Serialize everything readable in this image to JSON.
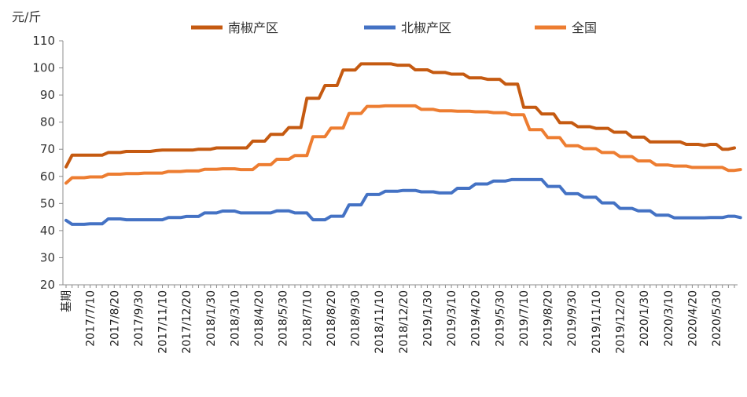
{
  "chart_data": {
    "type": "line",
    "unit_label": "元/斤",
    "ylim": [
      20,
      110
    ],
    "yticks": [
      20,
      30,
      40,
      50,
      60,
      70,
      80,
      90,
      100,
      110
    ],
    "x_labels": [
      "基期",
      "2017/7/10",
      "2017/8/20",
      "2017/9/30",
      "2017/11/10",
      "2017/12/20",
      "2018/1/30",
      "2018/3/10",
      "2018/4/20",
      "2018/5/30",
      "2018/7/10",
      "2018/8/20",
      "2018/9/30",
      "2018/11/10",
      "2018/12/20",
      "2019/1/30",
      "2019/3/10",
      "2019/4/20",
      "2019/5/30",
      "2019/7/10",
      "2019/8/20",
      "2019/9/30",
      "2019/11/10",
      "2019/12/20",
      "2020/1/30",
      "2020/3/10",
      "2020/4/20",
      "2020/5/30"
    ],
    "grid": false,
    "legend_position": "top",
    "series": [
      {
        "name": "南椒产区",
        "color": "#C55A11",
        "values": [
          63.5,
          67.8,
          67.8,
          67.8,
          67.8,
          67.8,
          67.8,
          68.8,
          68.8,
          68.8,
          69.2,
          69.2,
          69.2,
          69.2,
          69.2,
          69.5,
          69.7,
          69.7,
          69.7,
          69.7,
          69.7,
          69.7,
          70.0,
          70.0,
          70.0,
          70.5,
          70.5,
          70.5,
          70.5,
          70.5,
          70.5,
          73.0,
          73.0,
          73.0,
          75.5,
          75.5,
          75.5,
          78.0,
          78.0,
          78.0,
          88.8,
          88.8,
          88.8,
          93.5,
          93.5,
          93.5,
          99.2,
          99.2,
          99.2,
          101.5,
          101.5,
          101.5,
          101.5,
          101.5,
          101.5,
          101.0,
          101.0,
          101.0,
          99.3,
          99.3,
          99.3,
          98.3,
          98.3,
          98.3,
          97.7,
          97.7,
          97.7,
          96.3,
          96.3,
          96.3,
          95.8,
          95.8,
          95.8,
          94.0,
          94.0,
          94.0,
          85.5,
          85.5,
          85.5,
          83.0,
          83.0,
          83.0,
          79.8,
          79.8,
          79.8,
          78.3,
          78.3,
          78.3,
          77.7,
          77.7,
          77.7,
          76.3,
          76.3,
          76.3,
          74.5,
          74.5,
          74.5,
          72.7,
          72.7,
          72.7,
          72.7,
          72.7,
          72.7,
          71.8,
          71.8,
          71.8,
          71.4,
          71.8,
          71.8,
          70.0,
          70.0,
          70.5
        ]
      },
      {
        "name": "北椒产区",
        "color": "#4472C4",
        "values": [
          43.8,
          42.3,
          42.3,
          42.3,
          42.5,
          42.5,
          42.5,
          44.3,
          44.3,
          44.3,
          44.0,
          44.0,
          44.0,
          44.0,
          44.0,
          44.0,
          44.0,
          44.8,
          44.8,
          44.8,
          45.2,
          45.2,
          45.2,
          46.5,
          46.5,
          46.5,
          47.2,
          47.2,
          47.2,
          46.5,
          46.5,
          46.5,
          46.5,
          46.5,
          46.5,
          47.3,
          47.3,
          47.3,
          46.5,
          46.5,
          46.5,
          44.0,
          44.0,
          44.0,
          45.3,
          45.3,
          45.3,
          49.5,
          49.5,
          49.5,
          53.3,
          53.3,
          53.3,
          54.5,
          54.5,
          54.5,
          54.8,
          54.8,
          54.8,
          54.3,
          54.3,
          54.3,
          53.9,
          53.9,
          53.9,
          55.6,
          55.6,
          55.6,
          57.2,
          57.2,
          57.2,
          58.3,
          58.3,
          58.3,
          58.8,
          58.8,
          58.8,
          58.8,
          58.8,
          58.8,
          56.3,
          56.3,
          56.3,
          53.6,
          53.6,
          53.6,
          52.3,
          52.3,
          52.3,
          50.2,
          50.2,
          50.2,
          48.2,
          48.2,
          48.2,
          47.3,
          47.3,
          47.3,
          45.7,
          45.7,
          45.7,
          44.7,
          44.7,
          44.7,
          44.7,
          44.7,
          44.7,
          44.8,
          44.8,
          44.8,
          45.3,
          45.3,
          44.8
        ]
      },
      {
        "name": "全国",
        "color": "#ED7D31",
        "values": [
          57.5,
          59.5,
          59.5,
          59.5,
          59.8,
          59.8,
          59.8,
          60.8,
          60.8,
          60.8,
          61.0,
          61.0,
          61.0,
          61.2,
          61.2,
          61.2,
          61.2,
          61.8,
          61.8,
          61.8,
          62.0,
          62.0,
          62.0,
          62.6,
          62.6,
          62.6,
          62.8,
          62.8,
          62.8,
          62.5,
          62.5,
          62.5,
          64.3,
          64.3,
          64.3,
          66.3,
          66.3,
          66.3,
          67.7,
          67.7,
          67.7,
          74.6,
          74.6,
          74.6,
          77.8,
          77.8,
          77.8,
          83.2,
          83.2,
          83.2,
          85.8,
          85.8,
          85.8,
          86.0,
          86.0,
          86.0,
          86.0,
          86.0,
          86.0,
          84.7,
          84.7,
          84.7,
          84.2,
          84.2,
          84.2,
          84.0,
          84.0,
          84.0,
          83.8,
          83.8,
          83.8,
          83.5,
          83.5,
          83.5,
          82.7,
          82.7,
          82.7,
          77.2,
          77.2,
          77.2,
          74.3,
          74.3,
          74.3,
          71.3,
          71.3,
          71.3,
          70.2,
          70.2,
          70.2,
          68.8,
          68.8,
          68.8,
          67.3,
          67.3,
          67.3,
          65.7,
          65.7,
          65.7,
          64.2,
          64.2,
          64.2,
          63.8,
          63.8,
          63.8,
          63.3,
          63.3,
          63.3,
          63.3,
          63.3,
          63.3,
          62.2,
          62.2,
          62.5
        ]
      }
    ]
  }
}
